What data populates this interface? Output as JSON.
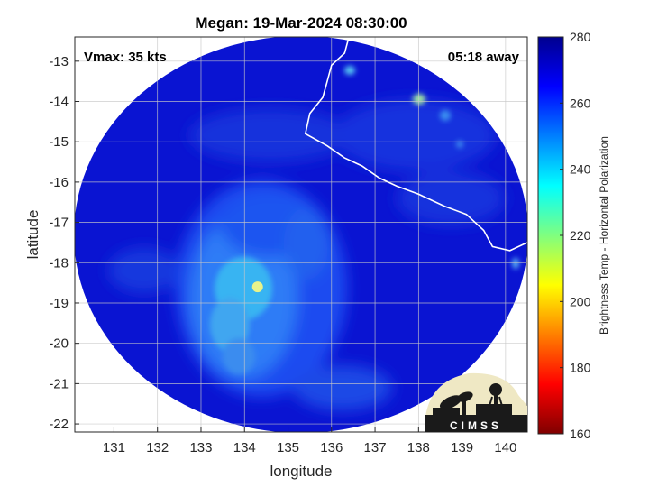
{
  "chart_data": {
    "type": "heatmap",
    "title": "Megan: 19-Mar-2024 08:30:00",
    "xlabel": "longitude",
    "ylabel": "latitude",
    "xlim": [
      130.1,
      140.5
    ],
    "ylim": [
      -22.2,
      -12.4
    ],
    "xticks": [
      131,
      132,
      133,
      134,
      135,
      136,
      137,
      138,
      139,
      140
    ],
    "yticks": [
      -13,
      -14,
      -15,
      -16,
      -17,
      -18,
      -19,
      -20,
      -21,
      -22
    ],
    "annotation_left": "Vmax: 35 kts",
    "annotation_right": "05:18 away",
    "grid": true,
    "colorbar": {
      "label": "Brightness Temp - Horizontal Polarization",
      "range": [
        160,
        280
      ],
      "ticks": [
        280,
        260,
        240,
        220,
        200,
        180,
        160
      ],
      "colormap": "jet"
    },
    "swath_center": [
      135.3,
      -17.2
    ],
    "storm_center": [
      134.3,
      -18.6
    ],
    "coldest_value": 222,
    "background_value": 275,
    "coastline": [
      [
        136.4,
        -12.4
      ],
      [
        136.3,
        -12.8
      ],
      [
        136.0,
        -13.1
      ],
      [
        135.9,
        -13.5
      ],
      [
        135.8,
        -13.9
      ],
      [
        135.5,
        -14.3
      ],
      [
        135.4,
        -14.8
      ],
      [
        135.9,
        -15.1
      ],
      [
        136.3,
        -15.4
      ],
      [
        136.7,
        -15.6
      ],
      [
        137.1,
        -15.9
      ],
      [
        137.5,
        -16.1
      ],
      [
        138.0,
        -16.3
      ],
      [
        138.6,
        -16.6
      ],
      [
        139.1,
        -16.8
      ],
      [
        139.5,
        -17.2
      ],
      [
        139.7,
        -17.6
      ],
      [
        140.1,
        -17.7
      ],
      [
        140.5,
        -17.5
      ]
    ],
    "logo_text": "CIMSS"
  }
}
